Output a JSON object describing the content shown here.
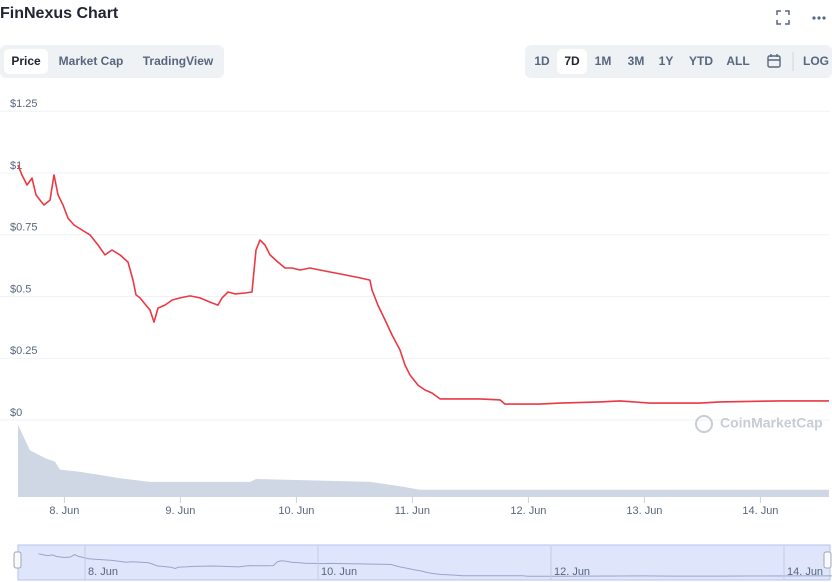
{
  "title": "FinNexus Chart",
  "tabs": [
    "Price",
    "Market Cap",
    "TradingView"
  ],
  "ranges": [
    "1D",
    "7D",
    "1M",
    "3M",
    "1Y",
    "YTD",
    "ALL"
  ],
  "log_button": "LOG",
  "watermark": "CoinMarketCap",
  "chart_data": {
    "type": "line",
    "x": [
      7.6,
      7.634,
      7.678,
      7.721,
      7.755,
      7.79,
      7.824,
      7.876,
      7.91,
      7.945,
      7.988,
      8.031,
      8.083,
      8.152,
      8.221,
      8.29,
      8.35,
      8.41,
      8.479,
      8.548,
      8.591,
      8.617,
      8.652,
      8.703,
      8.738,
      8.772,
      8.807,
      8.867,
      8.928,
      8.997,
      9.083,
      9.169,
      9.255,
      9.324,
      9.359,
      9.41,
      9.471,
      9.557,
      9.617,
      9.652,
      9.686,
      9.729,
      9.772,
      9.841,
      9.902,
      9.962,
      10.031,
      10.117,
      10.203,
      10.29,
      10.376,
      10.462,
      10.548,
      10.634,
      10.652,
      10.703,
      10.764,
      10.824,
      10.893,
      10.936,
      10.979,
      11.048,
      11.109,
      11.169,
      11.238,
      11.41,
      11.583,
      11.755,
      11.798,
      12.1,
      12.272,
      12.617,
      12.79,
      13.048,
      13.479,
      13.652,
      14.169,
      14.591
    ],
    "series": [
      {
        "color": "#ea3943",
        "values": [
          1.004,
          0.964,
          0.923,
          0.951,
          0.883,
          0.862,
          0.842,
          0.862,
          0.964,
          0.883,
          0.842,
          0.789,
          0.761,
          0.741,
          0.721,
          0.68,
          0.64,
          0.66,
          0.64,
          0.611,
          0.538,
          0.478,
          0.466,
          0.437,
          0.417,
          0.368,
          0.425,
          0.437,
          0.457,
          0.466,
          0.474,
          0.466,
          0.449,
          0.437,
          0.466,
          0.49,
          0.482,
          0.486,
          0.49,
          0.66,
          0.7,
          0.68,
          0.64,
          0.611,
          0.587,
          0.587,
          0.579,
          0.587,
          0.579,
          0.571,
          0.563,
          0.555,
          0.547,
          0.538,
          0.498,
          0.437,
          0.377,
          0.316,
          0.255,
          0.194,
          0.154,
          0.113,
          0.093,
          0.081,
          0.057,
          0.057,
          0.057,
          0.053,
          0.036,
          0.036,
          0.04,
          0.045,
          0.049,
          0.04,
          0.04,
          0.045,
          0.049,
          0.049
        ]
      }
    ],
    "volume": {
      "color": "#cfd6e4",
      "ylim": [
        0,
        1
      ],
      "x": [
        7.6,
        7.703,
        7.833,
        7.919,
        7.962,
        8.134,
        8.479,
        8.738,
        9.6,
        9.652,
        10.634,
        10.893,
        11.066,
        14.591
      ],
      "values": [
        1.0,
        0.65,
        0.54,
        0.49,
        0.38,
        0.35,
        0.26,
        0.21,
        0.21,
        0.25,
        0.21,
        0.15,
        0.1,
        0.1
      ]
    },
    "xlim": [
      7.6,
      14.6
    ],
    "xticks": [
      {
        "value": 8,
        "label": "8. Jun"
      },
      {
        "value": 9,
        "label": "9. Jun"
      },
      {
        "value": 10,
        "label": "10. Jun"
      },
      {
        "value": 11,
        "label": "11. Jun"
      },
      {
        "value": 12,
        "label": "12. Jun"
      },
      {
        "value": 13,
        "label": "13. Jun"
      },
      {
        "value": 14,
        "label": "14. Jun"
      }
    ],
    "ylim": [
      0,
      1.25
    ],
    "yticks": [
      {
        "value": 0,
        "label": "$0"
      },
      {
        "value": 0.25,
        "label": "$0.25"
      },
      {
        "value": 0.5,
        "label": "$0.5"
      },
      {
        "value": 0.75,
        "label": "$0.75"
      },
      {
        "value": 1,
        "label": "$1"
      },
      {
        "value": 1.25,
        "label": "$1.25"
      }
    ],
    "grid": true,
    "navigator": {
      "xlim": [
        7.425,
        14.395
      ],
      "xticks": [
        {
          "value": 8,
          "label": "8. Jun"
        },
        {
          "value": 10,
          "label": "10. Jun"
        },
        {
          "value": 12,
          "label": "12. Jun"
        },
        {
          "value": 14,
          "label": "14. Jun"
        }
      ]
    }
  }
}
